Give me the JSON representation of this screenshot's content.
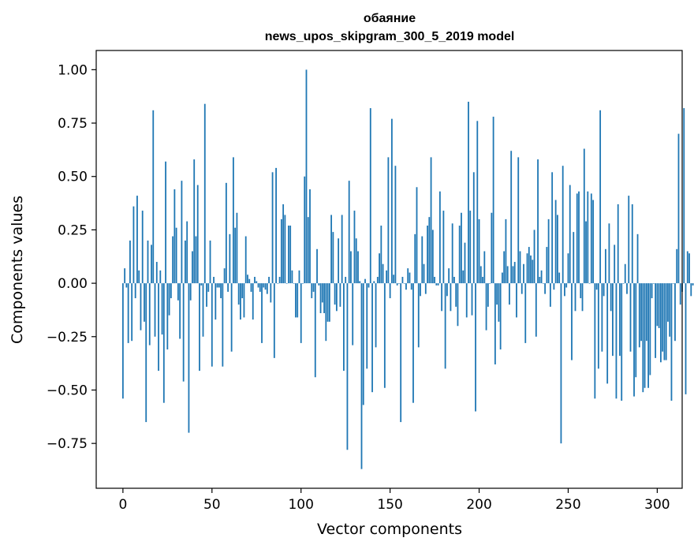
{
  "chart_data": {
    "type": "bar",
    "title": "обаяние",
    "subtitle": "news_upos_skipgram_300_5_2019 model",
    "xlabel": "Vector components",
    "ylabel": "Components values",
    "xlim": [
      -15,
      314
    ],
    "ylim": [
      -0.96,
      1.09
    ],
    "xticks": [
      0,
      50,
      100,
      150,
      200,
      250,
      300
    ],
    "xtick_labels": [
      "0",
      "50",
      "100",
      "150",
      "200",
      "250",
      "300"
    ],
    "yticks": [
      -0.75,
      -0.5,
      -0.25,
      0.0,
      0.25,
      0.5,
      0.75,
      1.0
    ],
    "ytick_labels": [
      "−0.75",
      "−0.50",
      "−0.25",
      "0.00",
      "0.25",
      "0.50",
      "0.75",
      "1.00"
    ],
    "bar_color": "#1f77b4",
    "values": [
      -0.54,
      0.07,
      -0.02,
      -0.28,
      0.2,
      -0.27,
      0.36,
      -0.07,
      0.41,
      0.06,
      -0.22,
      0.34,
      -0.18,
      -0.65,
      0.2,
      -0.29,
      0.18,
      0.81,
      -0.25,
      0.1,
      -0.41,
      0.06,
      -0.24,
      -0.56,
      0.57,
      -0.31,
      -0.15,
      -0.07,
      0.22,
      0.44,
      0.26,
      -0.08,
      -0.26,
      0.48,
      -0.46,
      0.2,
      0.29,
      -0.7,
      -0.08,
      0.15,
      0.58,
      0.22,
      0.46,
      -0.41,
      -0.01,
      -0.25,
      0.84,
      -0.11,
      -0.04,
      0.2,
      -0.39,
      0.03,
      -0.17,
      -0.02,
      -0.02,
      -0.07,
      -0.39,
      0.07,
      0.47,
      -0.04,
      0.23,
      -0.32,
      0.59,
      0.26,
      0.33,
      -0.1,
      -0.17,
      -0.07,
      -0.16,
      0.22,
      0.04,
      0.02,
      -0.04,
      -0.17,
      0.03,
      0.01,
      -0.02,
      -0.04,
      -0.28,
      -0.02,
      -0.03,
      -0.05,
      0.03,
      -0.09,
      0.52,
      -0.35,
      0.54,
      0.0,
      0.03,
      0.3,
      0.37,
      0.32,
      0.0,
      0.27,
      0.27,
      0.06,
      0.0,
      -0.16,
      -0.16,
      0.06,
      -0.28,
      0.0,
      0.5,
      1.0,
      0.31,
      0.44,
      -0.07,
      -0.04,
      -0.44,
      0.16,
      -0.01,
      -0.14,
      -0.09,
      -0.14,
      -0.27,
      -0.18,
      -0.18,
      0.32,
      0.24,
      -0.1,
      -0.13,
      0.21,
      -0.11,
      0.32,
      -0.41,
      0.03,
      -0.78,
      0.48,
      0.15,
      -0.29,
      0.34,
      0.21,
      0.15,
      0.01,
      -0.87,
      -0.57,
      0.02,
      -0.4,
      -0.02,
      0.82,
      -0.51,
      0.01,
      -0.3,
      0.03,
      0.14,
      0.27,
      0.09,
      -0.49,
      0.06,
      0.59,
      -0.07,
      0.77,
      0.04,
      0.55,
      -0.01,
      0.0,
      -0.65,
      0.03,
      0.0,
      -0.03,
      0.07,
      0.05,
      -0.03,
      -0.56,
      0.23,
      0.45,
      -0.3,
      -0.06,
      0.22,
      0.09,
      -0.05,
      0.27,
      0.31,
      0.59,
      0.25,
      0.03,
      -0.01,
      -0.01,
      0.43,
      -0.13,
      0.34,
      -0.4,
      -0.06,
      0.07,
      -0.13,
      0.28,
      0.03,
      -0.11,
      -0.2,
      0.27,
      0.33,
      0.06,
      0.19,
      -0.16,
      0.85,
      0.34,
      -0.15,
      0.52,
      -0.6,
      0.76,
      0.3,
      0.08,
      0.03,
      0.15,
      -0.22,
      -0.11,
      0.0,
      0.33,
      0.78,
      -0.38,
      -0.1,
      -0.18,
      -0.31,
      0.05,
      0.15,
      0.3,
      0.08,
      -0.1,
      0.62,
      0.08,
      0.1,
      -0.16,
      0.59,
      0.15,
      -0.05,
      0.09,
      -0.28,
      0.14,
      0.17,
      0.13,
      0.11,
      0.25,
      -0.25,
      0.58,
      0.03,
      0.06,
      0.0,
      -0.05,
      0.17,
      0.3,
      -0.11,
      0.52,
      -0.03,
      0.39,
      0.32,
      0.05,
      -0.75,
      0.55,
      -0.06,
      -0.02,
      0.14,
      0.46,
      -0.36,
      0.24,
      -0.13,
      0.42,
      0.43,
      -0.07,
      -0.13,
      0.63,
      0.29,
      0.43,
      0.0,
      0.42,
      0.39,
      -0.54,
      -0.03,
      -0.4,
      0.81,
      -0.32,
      -0.06,
      0.16,
      -0.47,
      0.28,
      -0.13,
      -0.34,
      0.18,
      -0.54,
      0.37,
      -0.34,
      -0.55,
      0.0,
      0.09,
      -0.05,
      0.41,
      -0.32,
      0.37,
      -0.53,
      -0.44,
      0.23,
      -0.3,
      -0.27,
      -0.51,
      -0.49,
      -0.27,
      -0.49,
      -0.43,
      -0.07,
      0.0,
      -0.35,
      -0.2,
      -0.21,
      -0.37,
      -0.32,
      -0.36,
      -0.36,
      -0.18,
      -0.25,
      -0.55,
      0.0,
      -0.27,
      0.16,
      0.7,
      -0.1,
      -0.04,
      0.82,
      -0.52,
      0.15,
      0.14,
      -0.06,
      -0.01,
      -0.01,
      -0.01
    ]
  }
}
